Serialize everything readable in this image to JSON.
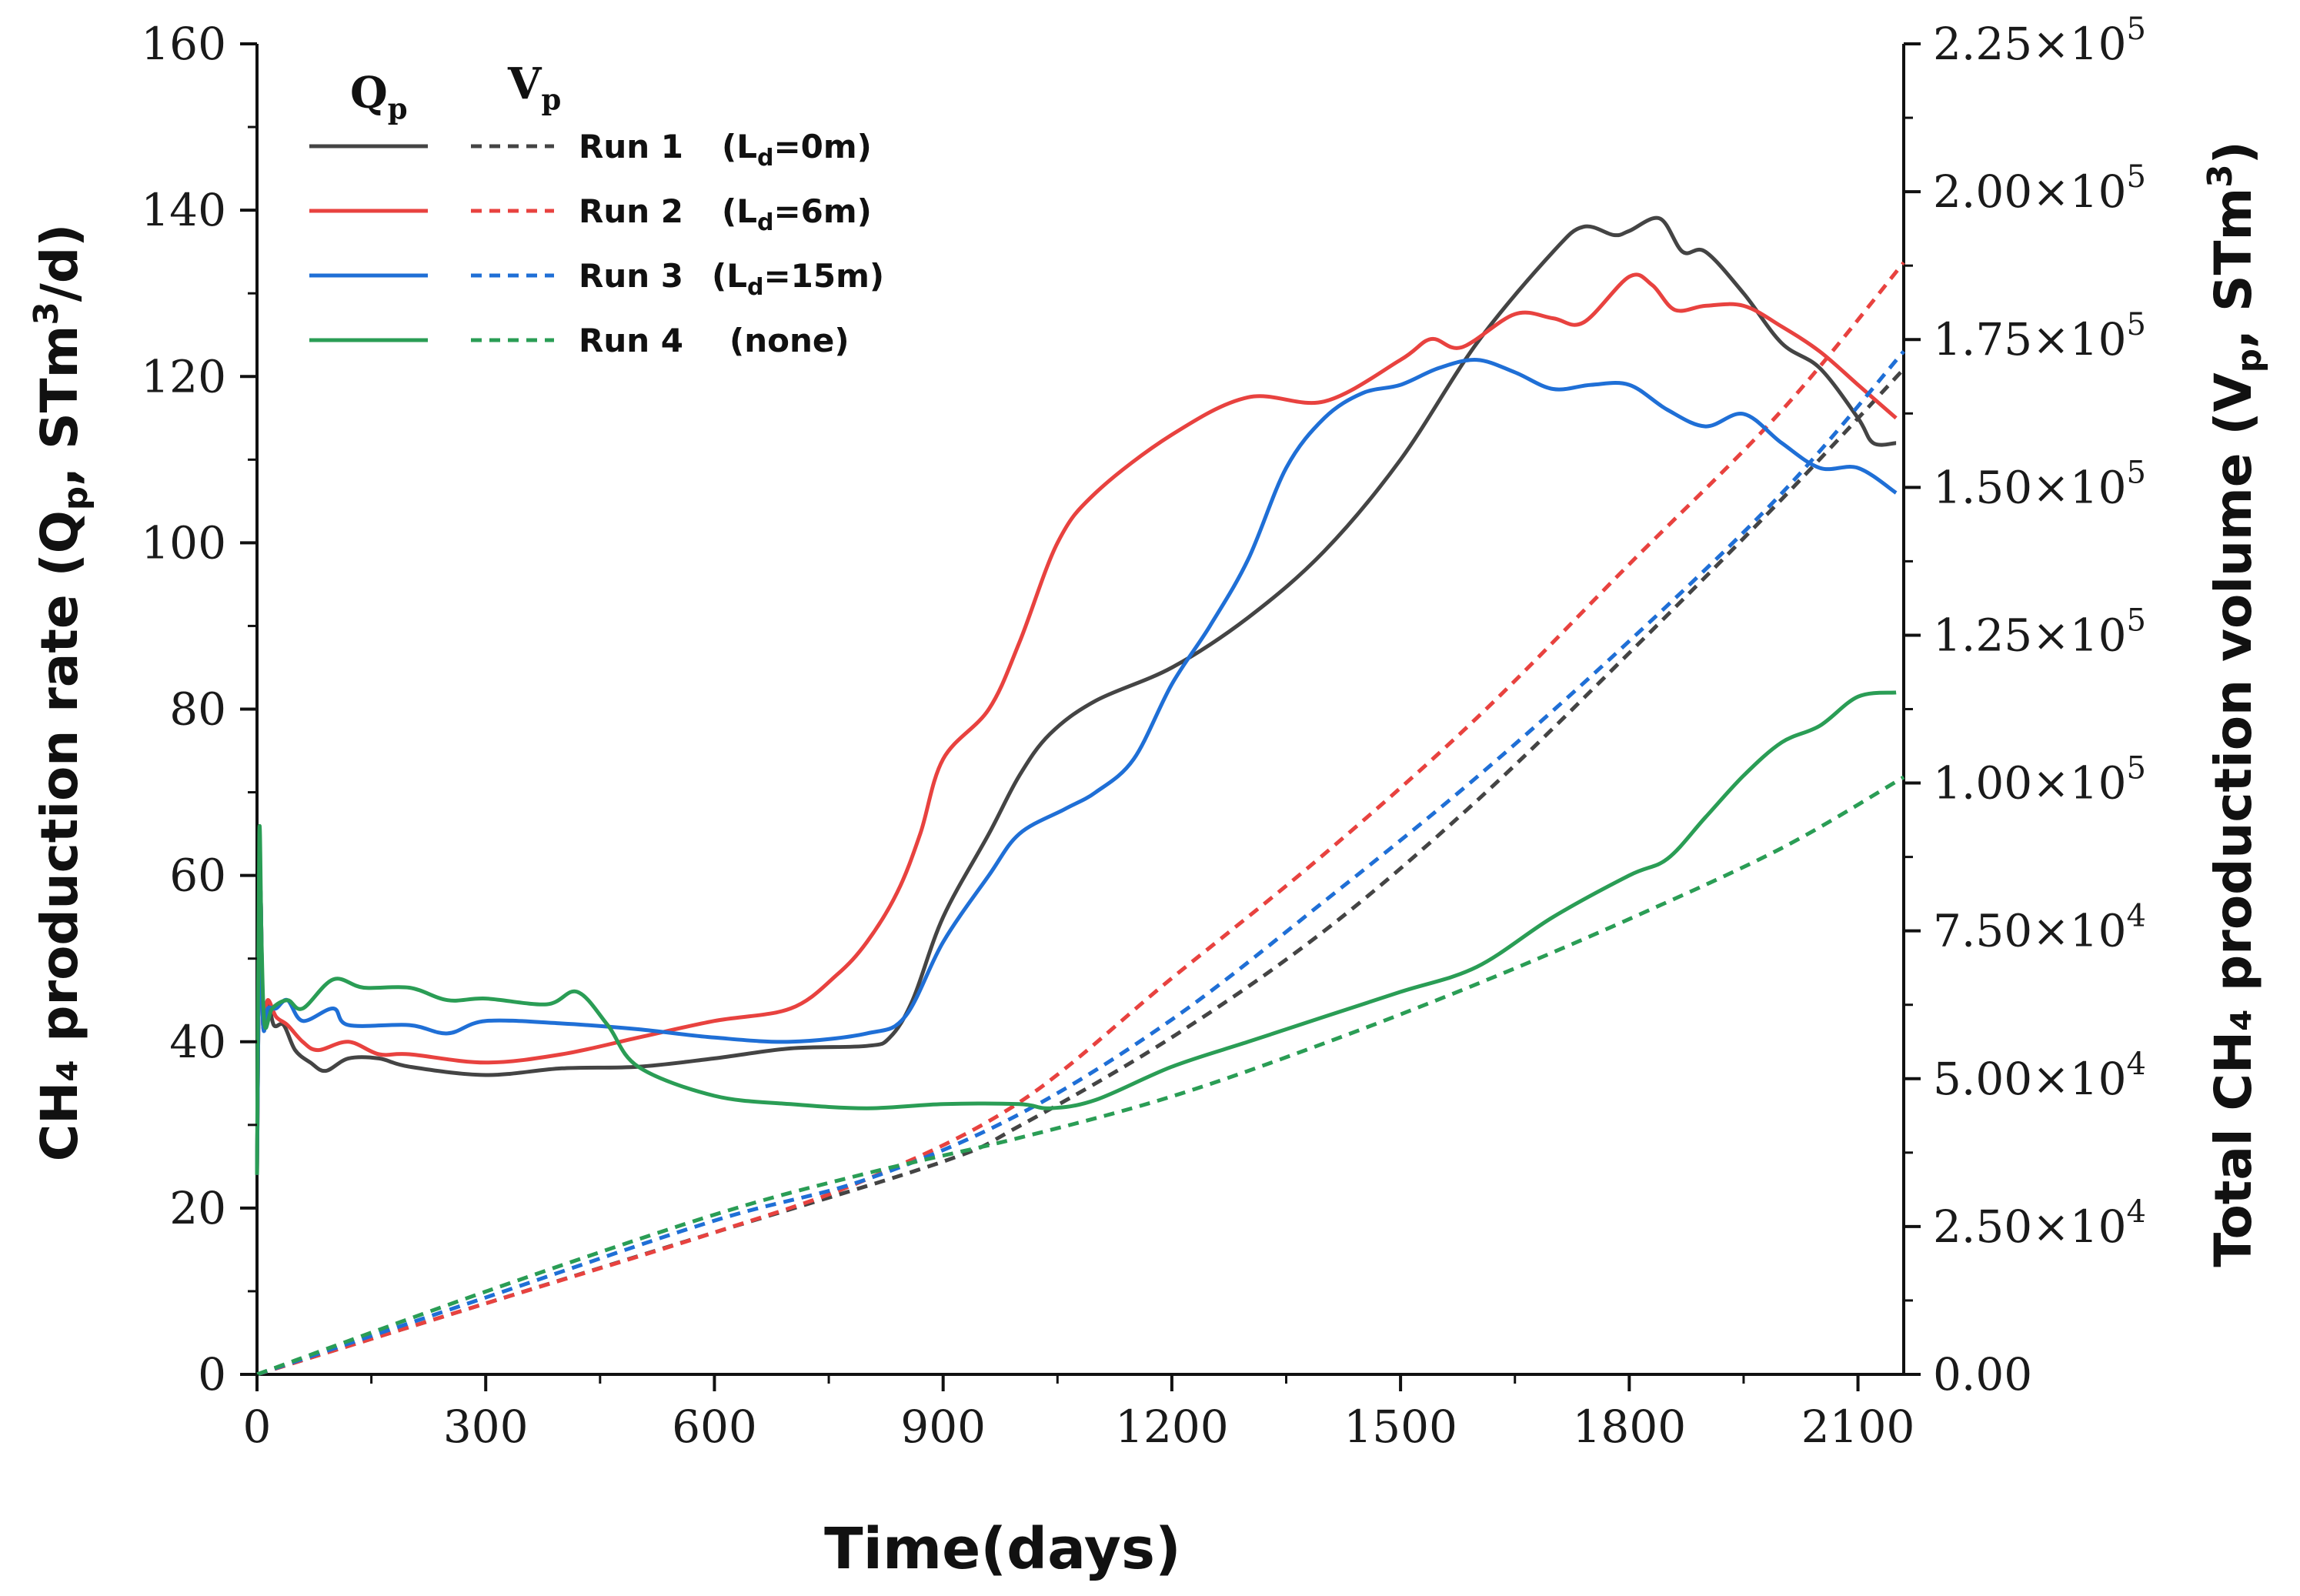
{
  "chart_data": {
    "type": "line",
    "xlabel": "Time(days)",
    "ylabel_left": "CH₄ production rate (Qp, STm³/d)",
    "ylabel_right": "Total CH₄ production volume (Vp, STm³)",
    "ylabel_left_parts": {
      "main": "CH₄ production rate (Q",
      "sub": "p",
      "mid": ", STm",
      "sup": "3",
      "end": "/d)"
    },
    "ylabel_right_parts": {
      "main": "Total CH₄ production volume (V",
      "sub": "p",
      "mid": ", STm",
      "sup": "3",
      "end": ")"
    },
    "xlim": [
      0,
      2160
    ],
    "ylim_left": [
      0,
      160
    ],
    "ylim_right": [
      0,
      225000
    ],
    "x_ticks": [
      "0",
      "300",
      "600",
      "900",
      "1200",
      "1500",
      "1800",
      "2100"
    ],
    "x_tick_values": [
      0,
      300,
      600,
      900,
      1200,
      1500,
      1800,
      2100
    ],
    "y_left_ticks": [
      "0",
      "20",
      "40",
      "60",
      "80",
      "100",
      "120",
      "140",
      "160"
    ],
    "y_left_tick_values": [
      0,
      20,
      40,
      60,
      80,
      100,
      120,
      140,
      160
    ],
    "y_right_tick_values": [
      0,
      25000,
      50000,
      75000,
      100000,
      125000,
      150000,
      175000,
      200000,
      225000
    ],
    "y_right_ticks": [
      {
        "mant": "0.00",
        "exp": ""
      },
      {
        "mant": "2.50×10",
        "exp": "4"
      },
      {
        "mant": "5.00×10",
        "exp": "4"
      },
      {
        "mant": "7.50×10",
        "exp": "4"
      },
      {
        "mant": "1.00×10",
        "exp": "5"
      },
      {
        "mant": "1.25×10",
        "exp": "5"
      },
      {
        "mant": "1.50×10",
        "exp": "5"
      },
      {
        "mant": "1.75×10",
        "exp": "5"
      },
      {
        "mant": "2.00×10",
        "exp": "5"
      },
      {
        "mant": "2.25×10",
        "exp": "5"
      }
    ],
    "legend": {
      "position": "top-left",
      "header_q": {
        "main": "Q",
        "sub": "p"
      },
      "header_v": {
        "main": "V",
        "sub": "p"
      },
      "entries": [
        {
          "run": "Run 1",
          "pre": "(L",
          "sub": "d",
          "post": "=0m)"
        },
        {
          "run": "Run 2",
          "pre": "(L",
          "sub": "d",
          "post": "=6m)"
        },
        {
          "run": "Run 3",
          "pre": "(L",
          "sub": "d",
          "post": "=15m)"
        },
        {
          "run": "Run 4",
          "pre": "(none)",
          "sub": "",
          "post": ""
        }
      ]
    },
    "series": [
      {
        "name": "Run 1 (Ld=0m)",
        "color": "#444444",
        "Qp": [
          [
            0,
            24
          ],
          [
            4,
            58
          ],
          [
            8,
            42
          ],
          [
            14,
            45
          ],
          [
            22,
            42
          ],
          [
            35,
            42
          ],
          [
            50,
            39
          ],
          [
            70,
            37.5
          ],
          [
            90,
            36.5
          ],
          [
            120,
            38
          ],
          [
            160,
            38
          ],
          [
            200,
            37
          ],
          [
            300,
            36
          ],
          [
            400,
            36.8
          ],
          [
            500,
            37
          ],
          [
            600,
            38
          ],
          [
            700,
            39.2
          ],
          [
            800,
            39.5
          ],
          [
            830,
            40.5
          ],
          [
            860,
            45
          ],
          [
            900,
            55
          ],
          [
            960,
            65
          ],
          [
            1000,
            72
          ],
          [
            1040,
            77
          ],
          [
            1100,
            81
          ],
          [
            1200,
            85
          ],
          [
            1300,
            91
          ],
          [
            1400,
            99
          ],
          [
            1500,
            110
          ],
          [
            1600,
            124
          ],
          [
            1700,
            135
          ],
          [
            1740,
            138
          ],
          [
            1780,
            137
          ],
          [
            1800,
            137.5
          ],
          [
            1840,
            139
          ],
          [
            1870,
            135
          ],
          [
            1900,
            135
          ],
          [
            1950,
            130
          ],
          [
            2000,
            124
          ],
          [
            2050,
            121
          ],
          [
            2100,
            115
          ],
          [
            2120,
            112
          ],
          [
            2150,
            112
          ]
        ],
        "Vp": [
          [
            0,
            0
          ],
          [
            300,
            12000
          ],
          [
            600,
            24000
          ],
          [
            900,
            36000
          ],
          [
            1000,
            42000
          ],
          [
            1200,
            57000
          ],
          [
            1400,
            75000
          ],
          [
            1600,
            97000
          ],
          [
            1800,
            122000
          ],
          [
            2000,
            148000
          ],
          [
            2160,
            170000
          ]
        ]
      },
      {
        "name": "Run 2 (Ld=6m)",
        "color": "#e8423f",
        "Qp": [
          [
            0,
            24
          ],
          [
            4,
            58
          ],
          [
            8,
            42
          ],
          [
            14,
            45
          ],
          [
            25,
            43
          ],
          [
            40,
            42
          ],
          [
            60,
            40
          ],
          [
            80,
            39
          ],
          [
            120,
            40
          ],
          [
            160,
            38.5
          ],
          [
            200,
            38.5
          ],
          [
            300,
            37.5
          ],
          [
            400,
            38.5
          ],
          [
            500,
            40.5
          ],
          [
            600,
            42.5
          ],
          [
            700,
            44
          ],
          [
            760,
            48
          ],
          [
            800,
            52
          ],
          [
            840,
            58
          ],
          [
            870,
            65
          ],
          [
            900,
            74
          ],
          [
            960,
            80
          ],
          [
            1000,
            88
          ],
          [
            1050,
            100
          ],
          [
            1100,
            106
          ],
          [
            1200,
            113
          ],
          [
            1300,
            117.5
          ],
          [
            1400,
            117
          ],
          [
            1500,
            122
          ],
          [
            1540,
            124.5
          ],
          [
            1580,
            123.5
          ],
          [
            1650,
            127.5
          ],
          [
            1700,
            127
          ],
          [
            1740,
            126.5
          ],
          [
            1800,
            132
          ],
          [
            1830,
            131
          ],
          [
            1860,
            128
          ],
          [
            1900,
            128.5
          ],
          [
            1950,
            128.5
          ],
          [
            2000,
            126
          ],
          [
            2050,
            123
          ],
          [
            2100,
            119
          ],
          [
            2150,
            115
          ]
        ],
        "Vp": [
          [
            0,
            0
          ],
          [
            300,
            12000
          ],
          [
            600,
            24000
          ],
          [
            800,
            33000
          ],
          [
            1000,
            46000
          ],
          [
            1200,
            67000
          ],
          [
            1400,
            88000
          ],
          [
            1600,
            111000
          ],
          [
            1800,
            137000
          ],
          [
            2000,
            163000
          ],
          [
            2160,
            188000
          ]
        ]
      },
      {
        "name": "Run 3 (Ld=15m)",
        "color": "#1f6fd6",
        "Qp": [
          [
            0,
            24
          ],
          [
            4,
            58
          ],
          [
            8,
            42
          ],
          [
            14,
            44
          ],
          [
            25,
            44
          ],
          [
            40,
            45
          ],
          [
            60,
            42.5
          ],
          [
            100,
            44
          ],
          [
            120,
            42
          ],
          [
            200,
            42
          ],
          [
            250,
            41
          ],
          [
            300,
            42.5
          ],
          [
            400,
            42.2
          ],
          [
            500,
            41.5
          ],
          [
            600,
            40.5
          ],
          [
            700,
            40
          ],
          [
            800,
            41
          ],
          [
            850,
            43
          ],
          [
            900,
            52
          ],
          [
            960,
            60
          ],
          [
            1000,
            65
          ],
          [
            1060,
            68
          ],
          [
            1100,
            70
          ],
          [
            1150,
            74
          ],
          [
            1200,
            83
          ],
          [
            1250,
            90
          ],
          [
            1300,
            98
          ],
          [
            1350,
            109
          ],
          [
            1400,
            115
          ],
          [
            1450,
            118
          ],
          [
            1500,
            119
          ],
          [
            1550,
            121
          ],
          [
            1600,
            122
          ],
          [
            1650,
            120.5
          ],
          [
            1700,
            118.5
          ],
          [
            1750,
            119
          ],
          [
            1800,
            119
          ],
          [
            1850,
            116
          ],
          [
            1900,
            114
          ],
          [
            1950,
            115.5
          ],
          [
            2000,
            112
          ],
          [
            2050,
            109
          ],
          [
            2100,
            109
          ],
          [
            2150,
            106
          ]
        ],
        "Vp": [
          [
            0,
            0
          ],
          [
            300,
            13000
          ],
          [
            600,
            26000
          ],
          [
            800,
            33000
          ],
          [
            1000,
            44000
          ],
          [
            1200,
            60000
          ],
          [
            1400,
            80000
          ],
          [
            1600,
            101000
          ],
          [
            1800,
            124000
          ],
          [
            2000,
            149000
          ],
          [
            2160,
            173000
          ]
        ]
      },
      {
        "name": "Run 4 (none)",
        "color": "#2a9d55",
        "Qp": [
          [
            0,
            24
          ],
          [
            3,
            65
          ],
          [
            6,
            52
          ],
          [
            10,
            42
          ],
          [
            20,
            44
          ],
          [
            40,
            45
          ],
          [
            60,
            44
          ],
          [
            100,
            47.5
          ],
          [
            140,
            46.5
          ],
          [
            200,
            46.5
          ],
          [
            250,
            45
          ],
          [
            300,
            45.2
          ],
          [
            380,
            44.5
          ],
          [
            420,
            46
          ],
          [
            460,
            42
          ],
          [
            500,
            37
          ],
          [
            600,
            33.5
          ],
          [
            700,
            32.5
          ],
          [
            800,
            32
          ],
          [
            900,
            32.5
          ],
          [
            1000,
            32.5
          ],
          [
            1040,
            32
          ],
          [
            1100,
            33
          ],
          [
            1200,
            37
          ],
          [
            1300,
            40
          ],
          [
            1400,
            43
          ],
          [
            1500,
            46
          ],
          [
            1600,
            49
          ],
          [
            1700,
            55
          ],
          [
            1800,
            60
          ],
          [
            1850,
            62
          ],
          [
            1900,
            67
          ],
          [
            1950,
            72
          ],
          [
            2000,
            76
          ],
          [
            2050,
            78
          ],
          [
            2100,
            81.5
          ],
          [
            2150,
            82
          ]
        ],
        "Vp": [
          [
            0,
            0
          ],
          [
            300,
            14000
          ],
          [
            600,
            27000
          ],
          [
            800,
            34000
          ],
          [
            1000,
            40000
          ],
          [
            1200,
            47000
          ],
          [
            1400,
            56000
          ],
          [
            1600,
            66000
          ],
          [
            1800,
            77000
          ],
          [
            2000,
            89000
          ],
          [
            2160,
            101000
          ]
        ]
      }
    ]
  }
}
